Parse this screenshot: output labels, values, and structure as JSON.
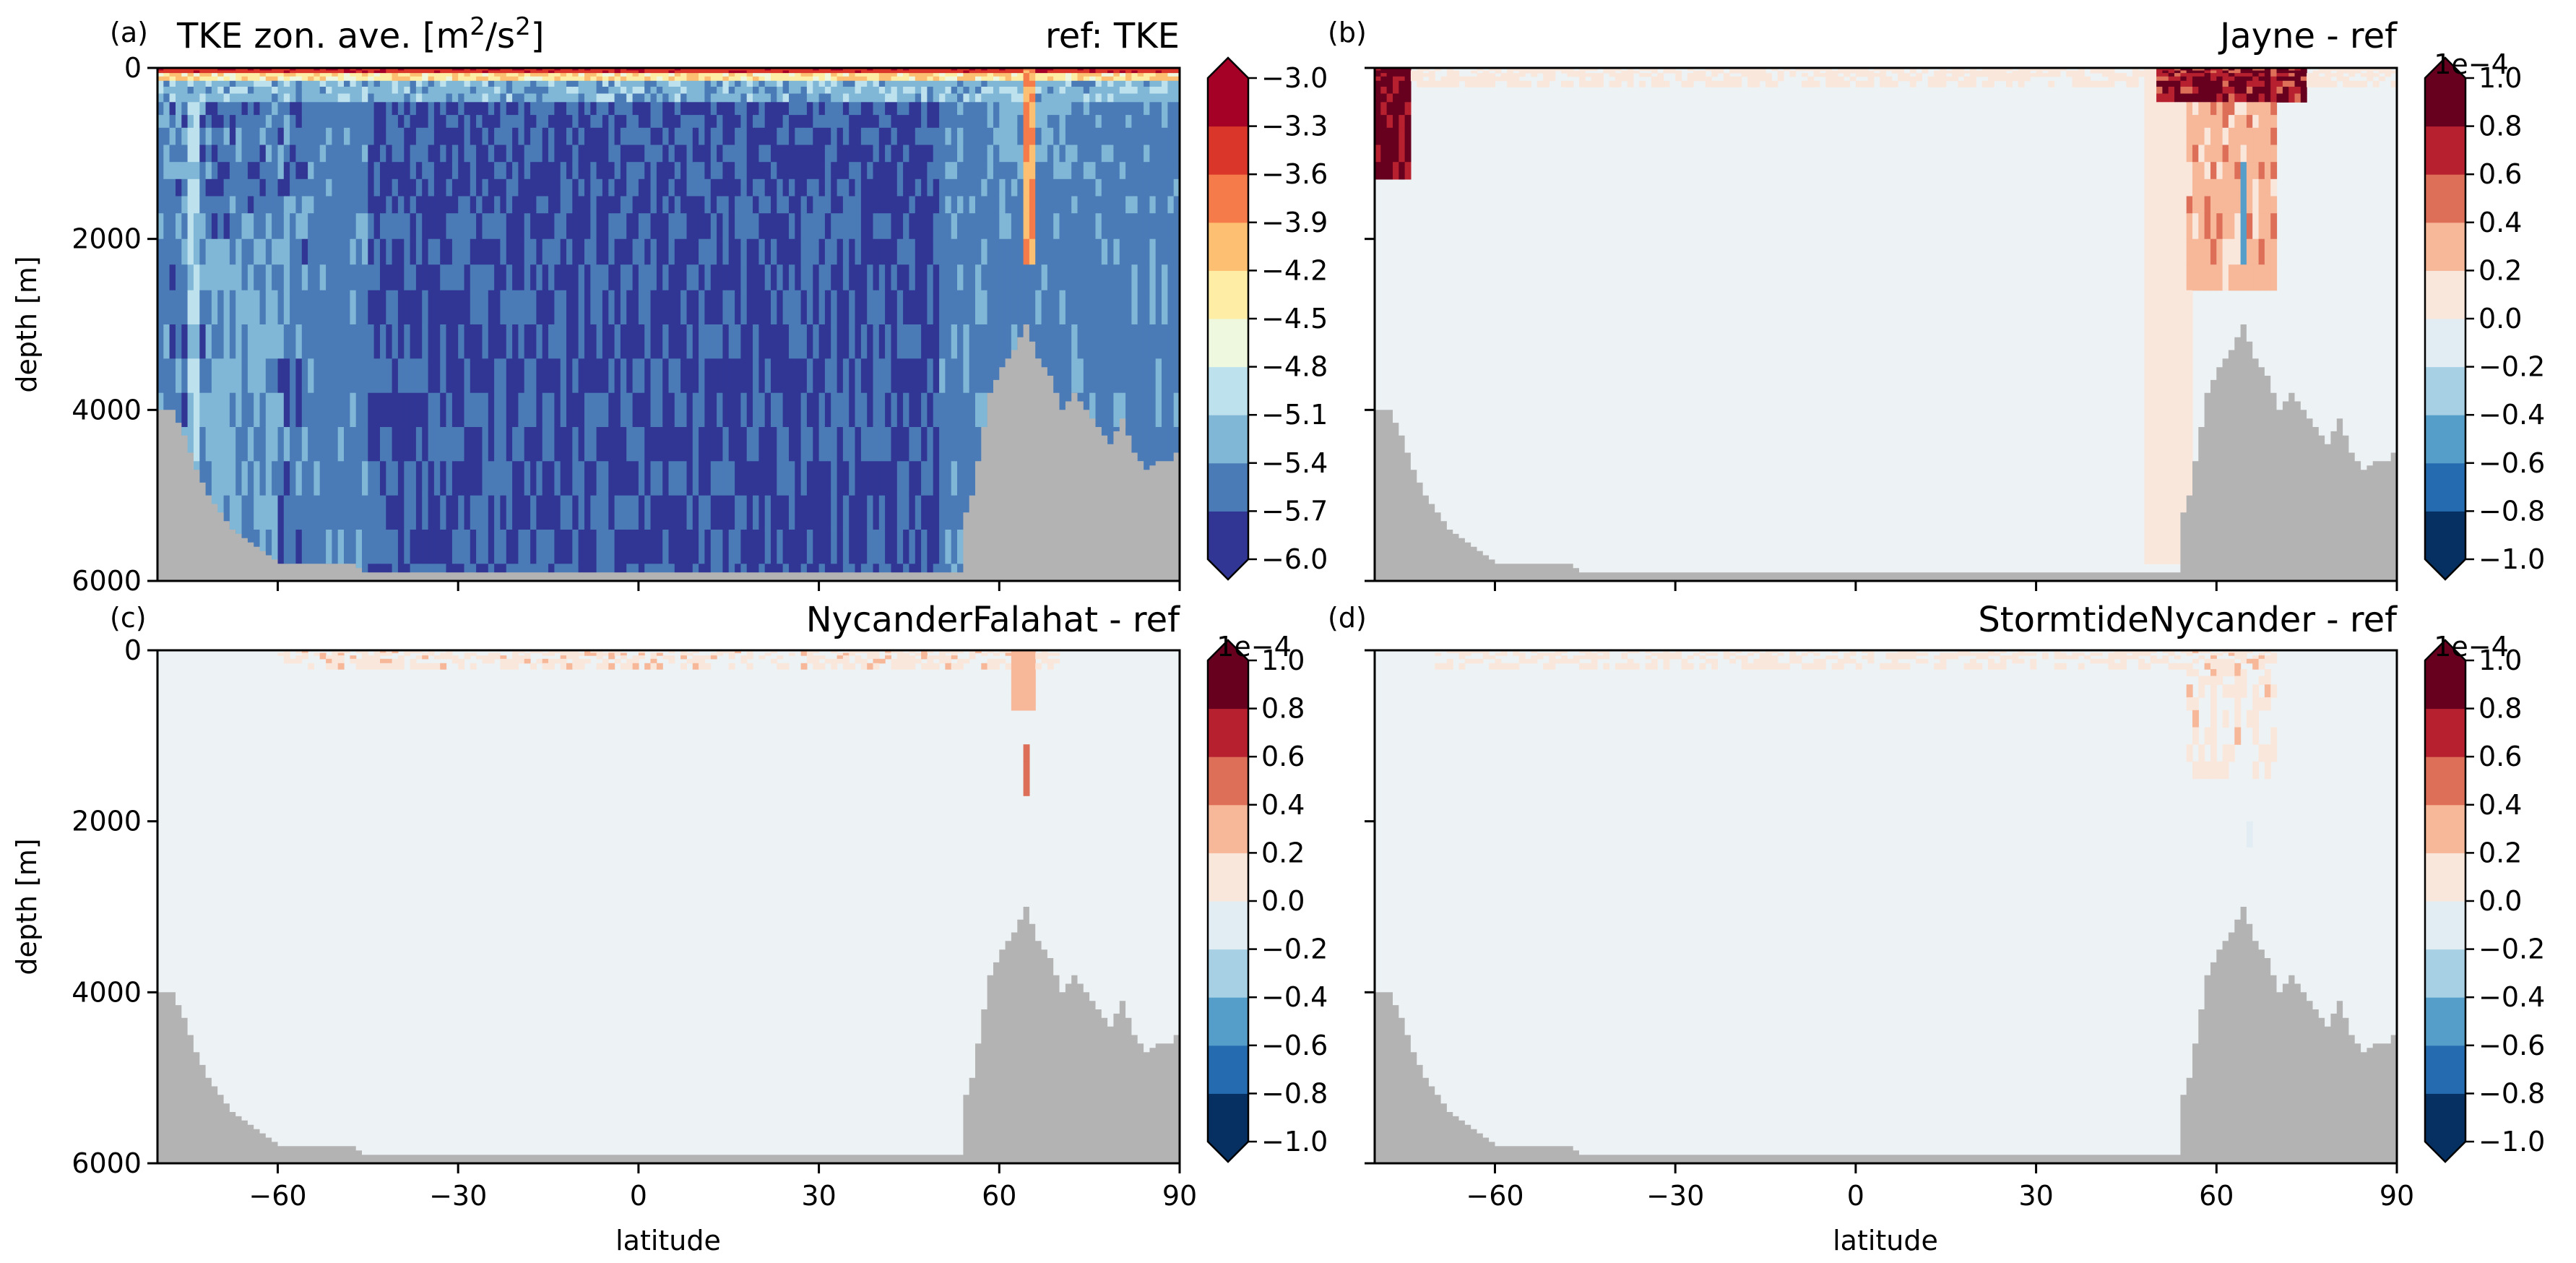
{
  "colors": {
    "land": "#b3b3b3",
    "rdbu": [
      "#053061",
      "#2166ac",
      "#4393c3",
      "#92c5de",
      "#d1e5f0",
      "#f7f7f7",
      "#fddbc7",
      "#f4a582",
      "#d6604d",
      "#b2182b",
      "#67001f"
    ],
    "rdylbu_r": [
      "#313695",
      "#4575b4",
      "#74add1",
      "#abd9e9",
      "#e0f3f8",
      "#ffffbf",
      "#fee090",
      "#fdae61",
      "#f46d43",
      "#d73027",
      "#a50026"
    ],
    "ref_background": "#edf2f4"
  },
  "chart_data": [
    {
      "id": "a",
      "type": "heatmap",
      "letter": "(a)",
      "title_left": "TKE zon. ave. [m",
      "title_sup1": "2",
      "title_mid": "/s",
      "title_sup2": "2",
      "title_end": "]",
      "title_right": "ref: TKE",
      "xlabel": "",
      "ylabel": "depth [m]",
      "xlim": [
        -80,
        90
      ],
      "ylim": [
        6000,
        0
      ],
      "xticks": [
        -60,
        -30,
        0,
        30,
        60,
        90
      ],
      "xtick_labels": [
        "",
        "",
        "",
        "",
        "",
        ""
      ],
      "yticks": [
        0,
        2000,
        4000,
        6000
      ],
      "ytick_labels": [
        "0",
        "2000",
        "4000",
        "6000"
      ],
      "colormap": "RdYlBu_r",
      "colorbar": {
        "levels": [
          -6.0,
          -5.7,
          -5.4,
          -5.1,
          -4.8,
          -4.5,
          -4.2,
          -3.9,
          -3.6,
          -3.3,
          -3.0
        ],
        "tick_labels": [
          "−6.0",
          "−5.7",
          "−5.4",
          "−5.1",
          "−4.8",
          "−4.5",
          "−4.2",
          "−3.9",
          "−3.6",
          "−3.3",
          "−3.0"
        ],
        "extend": "both",
        "offset": ""
      }
    },
    {
      "id": "b",
      "type": "heatmap",
      "letter": "(b)",
      "title_right": "Jayne - ref",
      "xlabel": "",
      "ylabel": "",
      "xlim": [
        -80,
        90
      ],
      "ylim": [
        6000,
        0
      ],
      "xticks": [
        -60,
        -30,
        0,
        30,
        60,
        90
      ],
      "xtick_labels": [
        "",
        "",
        "",
        "",
        "",
        ""
      ],
      "yticks": [
        0,
        2000,
        4000,
        6000
      ],
      "ytick_labels": [
        "",
        "",
        "",
        ""
      ],
      "colormap": "RdBu_r",
      "colorbar": {
        "levels": [
          -1.0,
          -0.8,
          -0.6,
          -0.4,
          -0.2,
          0.0,
          0.2,
          0.4,
          0.6,
          0.8,
          1.0
        ],
        "tick_labels": [
          "−1.0",
          "−0.8",
          "−0.6",
          "−0.4",
          "−0.2",
          "0.0",
          "0.2",
          "0.4",
          "0.6",
          "0.8",
          "1.0"
        ],
        "extend": "both",
        "offset": "1e−4"
      }
    },
    {
      "id": "c",
      "type": "heatmap",
      "letter": "(c)",
      "title_right": "NycanderFalahat - ref",
      "xlabel": "latitude",
      "ylabel": "depth [m]",
      "xlim": [
        -80,
        90
      ],
      "ylim": [
        6000,
        0
      ],
      "xticks": [
        -60,
        -30,
        0,
        30,
        60,
        90
      ],
      "xtick_labels": [
        "−60",
        "−30",
        "0",
        "30",
        "60",
        "90"
      ],
      "yticks": [
        0,
        2000,
        4000,
        6000
      ],
      "ytick_labels": [
        "0",
        "2000",
        "4000",
        "6000"
      ],
      "colormap": "RdBu_r",
      "colorbar": {
        "levels": [
          -1.0,
          -0.8,
          -0.6,
          -0.4,
          -0.2,
          0.0,
          0.2,
          0.4,
          0.6,
          0.8,
          1.0
        ],
        "tick_labels": [
          "−1.0",
          "−0.8",
          "−0.6",
          "−0.4",
          "−0.2",
          "0.0",
          "0.2",
          "0.4",
          "0.6",
          "0.8",
          "1.0"
        ],
        "extend": "both",
        "offset": "1e−4"
      }
    },
    {
      "id": "d",
      "type": "heatmap",
      "letter": "(d)",
      "title_right": "StormtideNycander - ref",
      "xlabel": "latitude",
      "ylabel": "",
      "xlim": [
        -80,
        90
      ],
      "ylim": [
        6000,
        0
      ],
      "xticks": [
        -60,
        -30,
        0,
        30,
        60,
        90
      ],
      "xtick_labels": [
        "−60",
        "−30",
        "0",
        "30",
        "60",
        "90"
      ],
      "yticks": [
        0,
        2000,
        4000,
        6000
      ],
      "ytick_labels": [
        "",
        "",
        "",
        ""
      ],
      "colormap": "RdBu_r",
      "colorbar": {
        "levels": [
          -1.0,
          -0.8,
          -0.6,
          -0.4,
          -0.2,
          0.0,
          0.2,
          0.4,
          0.6,
          0.8,
          1.0
        ],
        "tick_labels": [
          "−1.0",
          "−0.8",
          "−0.6",
          "−0.4",
          "−0.2",
          "0.0",
          "0.2",
          "0.4",
          "0.6",
          "0.8",
          "1.0"
        ],
        "extend": "both",
        "offset": "1e−4"
      }
    }
  ],
  "bathymetry": {
    "lat": [
      -80,
      -78,
      -76,
      -74,
      -72,
      -70,
      -68,
      -66,
      -64,
      -62,
      -60,
      -58,
      -56,
      -54,
      -52,
      -50,
      -48,
      -46,
      -44,
      -40,
      0,
      40,
      53,
      54,
      55,
      56,
      57,
      58,
      60,
      62,
      64,
      66,
      68,
      70,
      72,
      74,
      76,
      78,
      80,
      82,
      84,
      86,
      88,
      90
    ],
    "depth": [
      4000,
      4000,
      4300,
      4700,
      5000,
      5200,
      5400,
      5500,
      5600,
      5700,
      5800,
      5800,
      5800,
      5800,
      5800,
      5800,
      5800,
      5900,
      5900,
      5900,
      5900,
      5900,
      5900,
      5200,
      5000,
      4600,
      4200,
      3800,
      3500,
      3300,
      3000,
      3400,
      3600,
      4000,
      3800,
      4000,
      4200,
      4400,
      4100,
      4500,
      4700,
      4600,
      4600,
      4400
    ]
  }
}
